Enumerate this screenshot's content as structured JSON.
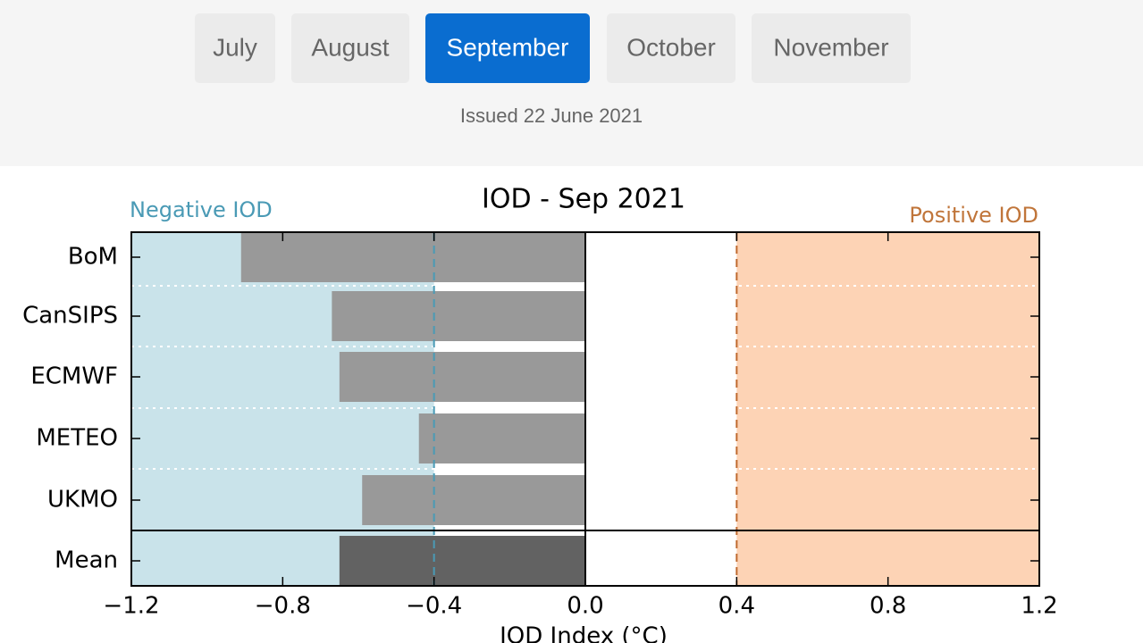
{
  "tabs": [
    "July",
    "August",
    "September",
    "October",
    "November"
  ],
  "active_tab": 2,
  "issued": "Issued 22 June 2021",
  "chart_data": {
    "type": "barh",
    "title": "IOD - Sep 2021",
    "x_label": "IOD Index (°C)",
    "negative_label": "Negative IOD",
    "positive_label": "Positive IOD",
    "categories": [
      "BoM",
      "CanSIPS",
      "ECMWF",
      "METEO",
      "UKMO",
      "Mean"
    ],
    "values": [
      -0.91,
      -0.67,
      -0.65,
      -0.44,
      -0.59,
      -0.65
    ],
    "colors": [
      "#999999",
      "#999999",
      "#999999",
      "#999999",
      "#999999",
      "#626262"
    ],
    "xlim": [
      -1.2,
      1.2
    ],
    "xticks": [
      {
        "value": -1.2,
        "label": "−1.2"
      },
      {
        "value": -0.8,
        "label": "−0.8"
      },
      {
        "value": -0.4,
        "label": "−0.4"
      },
      {
        "value": 0,
        "label": "0.0"
      },
      0.4,
      0.8,
      1.2
    ],
    "thresholds": [
      -0.4,
      0.4
    ],
    "negative_color": "#c9e3ea",
    "positive_color": "#fdd3b5",
    "negative_line_color": "#4a9ab5",
    "positive_line_color": "#c06a30"
  }
}
